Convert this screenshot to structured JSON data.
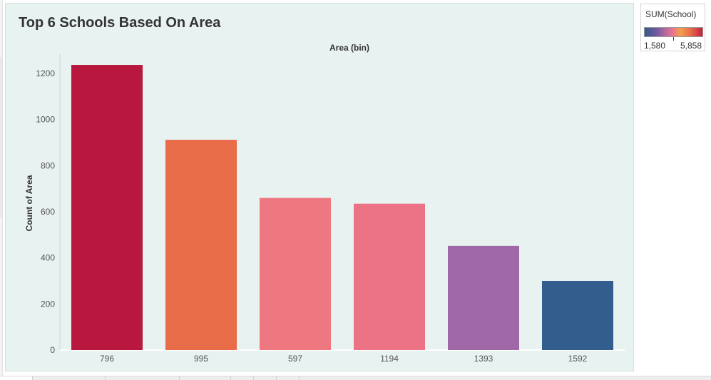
{
  "chart_data": {
    "type": "bar",
    "title": "Top 6 Schools Based On Area",
    "xlabel": "Area (bin)",
    "ylabel": "Count of Area",
    "categories": [
      "796",
      "995",
      "597",
      "1194",
      "1393",
      "1592"
    ],
    "values": [
      1237,
      912,
      660,
      635,
      452,
      300
    ],
    "colors": [
      "#b8183e",
      "#e96c48",
      "#ef7780",
      "#ec7285",
      "#a068a6",
      "#335d8c"
    ],
    "ylim": [
      0,
      1300
    ],
    "yticks": [
      0,
      200,
      400,
      600,
      800,
      1000,
      1200
    ],
    "grid": false,
    "legend": {
      "title": "SUM(School)",
      "min_label": "1,580",
      "max_label": "5,858",
      "placement": "top-right"
    }
  }
}
